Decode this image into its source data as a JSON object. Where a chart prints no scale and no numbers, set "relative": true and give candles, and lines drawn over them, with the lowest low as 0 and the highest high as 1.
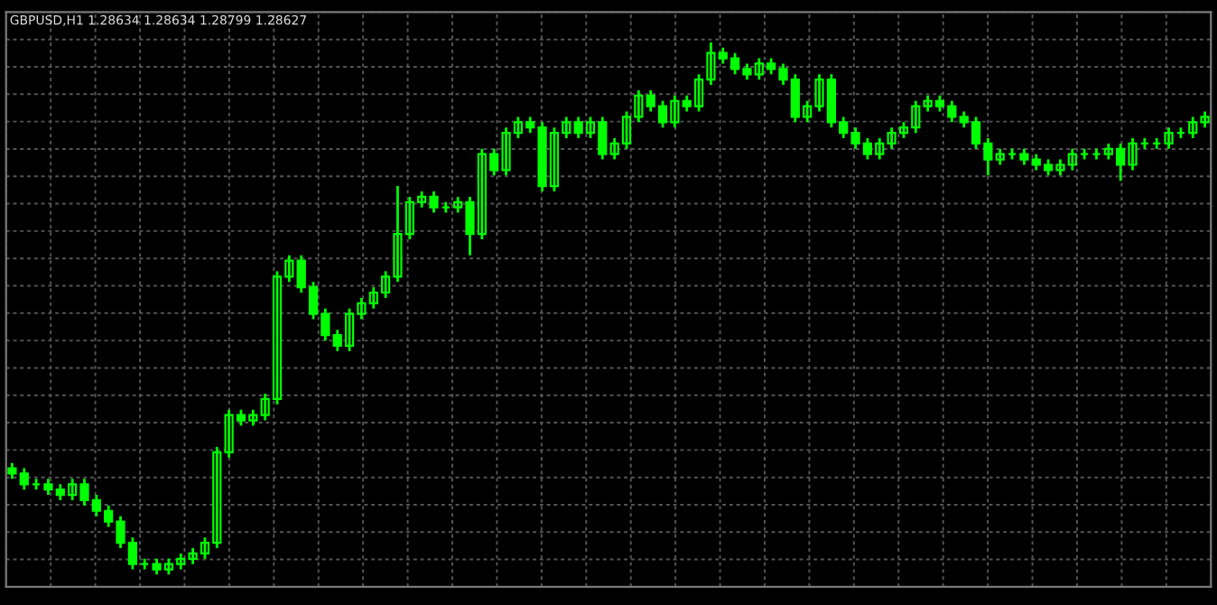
{
  "chart_data": {
    "type": "candlestick",
    "title": "GBPUSD,H1 1.28634 1.28634 1.28799 1.28627",
    "relative": true,
    "color": "#00ff00",
    "grid": true,
    "categories": [
      null,
      null,
      null,
      null,
      null,
      null,
      null,
      null,
      null,
      null,
      null,
      null,
      null,
      null,
      null,
      null,
      null,
      null,
      null,
      null,
      null,
      null,
      null,
      null,
      null,
      null,
      null,
      null,
      null,
      null,
      null,
      null,
      null,
      null,
      null,
      null,
      null,
      null,
      null,
      null,
      null,
      null,
      null,
      null,
      null,
      null,
      null,
      null,
      null,
      null,
      null,
      null,
      null,
      null,
      null,
      null,
      null,
      null,
      null,
      null,
      null,
      null,
      null,
      null,
      null,
      null,
      null,
      null,
      null,
      null,
      null,
      null,
      null,
      null,
      null,
      null,
      null,
      null,
      null,
      null,
      null,
      null,
      null,
      null,
      null,
      null,
      null,
      null,
      null,
      null,
      null,
      null,
      null,
      null,
      null,
      null,
      null,
      null,
      null,
      null
    ],
    "ohlc": [
      [
        0.2,
        0.21,
        0.18,
        0.19
      ],
      [
        0.19,
        0.2,
        0.16,
        0.17
      ],
      [
        0.17,
        0.18,
        0.16,
        0.17
      ],
      [
        0.17,
        0.18,
        0.15,
        0.16
      ],
      [
        0.16,
        0.17,
        0.14,
        0.15
      ],
      [
        0.15,
        0.18,
        0.14,
        0.17
      ],
      [
        0.17,
        0.18,
        0.13,
        0.14
      ],
      [
        0.14,
        0.15,
        0.11,
        0.12
      ],
      [
        0.12,
        0.13,
        0.09,
        0.1
      ],
      [
        0.1,
        0.11,
        0.05,
        0.06
      ],
      [
        0.06,
        0.07,
        0.01,
        0.02
      ],
      [
        0.02,
        0.03,
        0.01,
        0.02
      ],
      [
        0.02,
        0.03,
        0,
        0.01
      ],
      [
        0.01,
        0.03,
        0,
        0.02
      ],
      [
        0.02,
        0.04,
        0.01,
        0.03
      ],
      [
        0.03,
        0.05,
        0.02,
        0.04
      ],
      [
        0.04,
        0.07,
        0.03,
        0.06
      ],
      [
        0.06,
        0.24,
        0.05,
        0.23
      ],
      [
        0.23,
        0.31,
        0.22,
        0.3
      ],
      [
        0.3,
        0.31,
        0.28,
        0.29
      ],
      [
        0.29,
        0.31,
        0.28,
        0.3
      ],
      [
        0.3,
        0.34,
        0.29,
        0.33
      ],
      [
        0.33,
        0.57,
        0.32,
        0.56
      ],
      [
        0.56,
        0.6,
        0.55,
        0.59
      ],
      [
        0.59,
        0.6,
        0.53,
        0.54
      ],
      [
        0.54,
        0.55,
        0.48,
        0.49
      ],
      [
        0.49,
        0.5,
        0.44,
        0.45
      ],
      [
        0.45,
        0.46,
        0.42,
        0.43
      ],
      [
        0.43,
        0.5,
        0.42,
        0.49
      ],
      [
        0.49,
        0.52,
        0.48,
        0.51
      ],
      [
        0.51,
        0.54,
        0.5,
        0.53
      ],
      [
        0.53,
        0.57,
        0.52,
        0.56
      ],
      [
        0.56,
        0.73,
        0.55,
        0.64
      ],
      [
        0.64,
        0.71,
        0.63,
        0.7
      ],
      [
        0.7,
        0.72,
        0.69,
        0.71
      ],
      [
        0.71,
        0.72,
        0.68,
        0.69
      ],
      [
        0.69,
        0.7,
        0.68,
        0.69
      ],
      [
        0.69,
        0.71,
        0.68,
        0.7
      ],
      [
        0.7,
        0.71,
        0.6,
        0.64
      ],
      [
        0.64,
        0.8,
        0.63,
        0.79
      ],
      [
        0.79,
        0.8,
        0.75,
        0.76
      ],
      [
        0.76,
        0.84,
        0.75,
        0.83
      ],
      [
        0.83,
        0.86,
        0.82,
        0.85
      ],
      [
        0.85,
        0.86,
        0.83,
        0.84
      ],
      [
        0.84,
        0.85,
        0.72,
        0.73
      ],
      [
        0.73,
        0.84,
        0.72,
        0.83
      ],
      [
        0.83,
        0.86,
        0.82,
        0.85
      ],
      [
        0.85,
        0.86,
        0.82,
        0.83
      ],
      [
        0.83,
        0.86,
        0.82,
        0.85
      ],
      [
        0.85,
        0.86,
        0.78,
        0.79
      ],
      [
        0.79,
        0.82,
        0.78,
        0.81
      ],
      [
        0.81,
        0.87,
        0.8,
        0.86
      ],
      [
        0.86,
        0.91,
        0.85,
        0.9
      ],
      [
        0.9,
        0.91,
        0.87,
        0.88
      ],
      [
        0.88,
        0.89,
        0.84,
        0.85
      ],
      [
        0.85,
        0.9,
        0.84,
        0.89
      ],
      [
        0.89,
        0.9,
        0.87,
        0.88
      ],
      [
        0.88,
        0.94,
        0.87,
        0.93
      ],
      [
        0.93,
        1,
        0.92,
        0.98
      ],
      [
        0.98,
        0.99,
        0.96,
        0.97
      ],
      [
        0.97,
        0.98,
        0.94,
        0.95
      ],
      [
        0.95,
        0.96,
        0.93,
        0.94
      ],
      [
        0.94,
        0.97,
        0.93,
        0.96
      ],
      [
        0.96,
        0.97,
        0.94,
        0.95
      ],
      [
        0.95,
        0.96,
        0.92,
        0.93
      ],
      [
        0.93,
        0.94,
        0.85,
        0.86
      ],
      [
        0.86,
        0.89,
        0.85,
        0.88
      ],
      [
        0.88,
        0.94,
        0.87,
        0.93
      ],
      [
        0.93,
        0.94,
        0.84,
        0.85
      ],
      [
        0.85,
        0.86,
        0.82,
        0.83
      ],
      [
        0.83,
        0.84,
        0.8,
        0.81
      ],
      [
        0.81,
        0.82,
        0.78,
        0.79
      ],
      [
        0.79,
        0.82,
        0.78,
        0.81
      ],
      [
        0.81,
        0.84,
        0.8,
        0.83
      ],
      [
        0.83,
        0.85,
        0.82,
        0.84
      ],
      [
        0.84,
        0.89,
        0.83,
        0.88
      ],
      [
        0.88,
        0.9,
        0.87,
        0.89
      ],
      [
        0.89,
        0.9,
        0.87,
        0.88
      ],
      [
        0.88,
        0.89,
        0.85,
        0.86
      ],
      [
        0.86,
        0.87,
        0.84,
        0.85
      ],
      [
        0.85,
        0.86,
        0.8,
        0.81
      ],
      [
        0.81,
        0.82,
        0.75,
        0.78
      ],
      [
        0.78,
        0.8,
        0.77,
        0.79
      ],
      [
        0.79,
        0.8,
        0.78,
        0.79
      ],
      [
        0.79,
        0.8,
        0.77,
        0.78
      ],
      [
        0.78,
        0.79,
        0.76,
        0.77
      ],
      [
        0.77,
        0.78,
        0.75,
        0.76
      ],
      [
        0.76,
        0.78,
        0.75,
        0.77
      ],
      [
        0.77,
        0.8,
        0.76,
        0.79
      ],
      [
        0.79,
        0.8,
        0.78,
        0.79
      ],
      [
        0.79,
        0.8,
        0.78,
        0.79
      ],
      [
        0.79,
        0.81,
        0.78,
        0.8
      ],
      [
        0.8,
        0.81,
        0.74,
        0.77
      ],
      [
        0.77,
        0.82,
        0.76,
        0.81
      ],
      [
        0.81,
        0.82,
        0.8,
        0.81
      ],
      [
        0.81,
        0.82,
        0.8,
        0.81
      ],
      [
        0.81,
        0.84,
        0.8,
        0.83
      ],
      [
        0.83,
        0.84,
        0.82,
        0.83
      ],
      [
        0.83,
        0.86,
        0.82,
        0.85
      ],
      [
        0.85,
        0.87,
        0.84,
        0.86
      ]
    ]
  }
}
